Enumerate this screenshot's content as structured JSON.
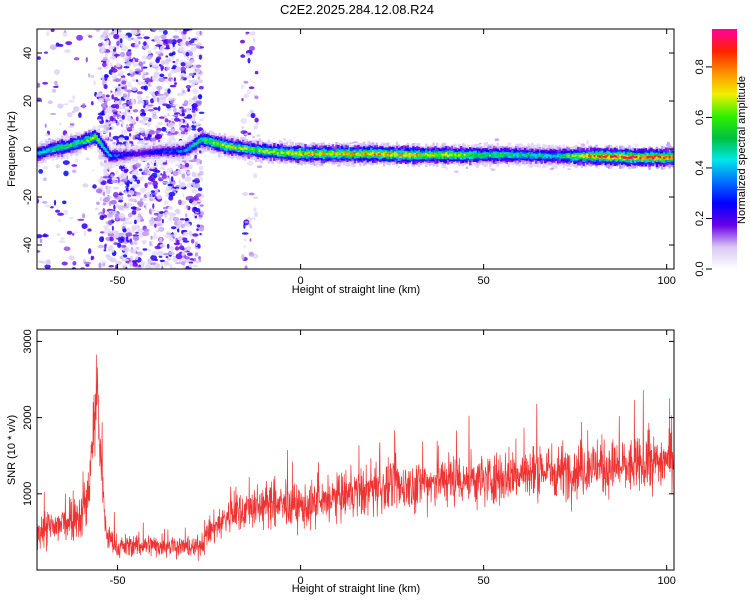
{
  "title": "C2E2.2025.284.12.08.R24",
  "chart_data": [
    {
      "type": "heatmap",
      "xlabel": "Height of straight line (km)",
      "ylabel": "Frequency (Hz)",
      "xlim": [
        -72,
        102
      ],
      "ylim": [
        -50,
        50
      ],
      "xticks": [
        -50,
        0,
        50,
        100
      ],
      "yticks": [
        -40,
        -20,
        0,
        20,
        40
      ],
      "colorbar": {
        "label": "Normalized spectral amplitude",
        "range": [
          0,
          0.95
        ],
        "ticks": [
          "0.0",
          "0.2",
          "0.4",
          "0.6",
          "0.8"
        ],
        "tick_values": [
          0,
          0.2,
          0.4,
          0.6,
          0.8
        ],
        "colors": [
          "#ffffff",
          "#d8c8f4",
          "#6a00e8",
          "#0000ff",
          "#0070ff",
          "#00e8e8",
          "#00c040",
          "#30f000",
          "#f0f000",
          "#ff9000",
          "#ff2000",
          "#ff00a0"
        ]
      },
      "ridge": [
        {
          "x": -72,
          "f": -2
        },
        {
          "x": -68,
          "f": 0
        },
        {
          "x": -64,
          "f": 1
        },
        {
          "x": -60,
          "f": 3
        },
        {
          "x": -56,
          "f": 5
        },
        {
          "x": -52,
          "f": -3
        },
        {
          "x": -45,
          "f": -2
        },
        {
          "x": -38,
          "f": -1
        },
        {
          "x": -32,
          "f": -1
        },
        {
          "x": -27,
          "f": 4
        },
        {
          "x": -20,
          "f": 1
        },
        {
          "x": -10,
          "f": -1
        },
        {
          "x": 0,
          "f": -2
        },
        {
          "x": 10,
          "f": -2
        },
        {
          "x": 20,
          "f": -2
        },
        {
          "x": 30,
          "f": -2.5
        },
        {
          "x": 40,
          "f": -2.5
        },
        {
          "x": 50,
          "f": -2.5
        },
        {
          "x": 60,
          "f": -2.5
        },
        {
          "x": 70,
          "f": -3
        },
        {
          "x": 80,
          "f": -3
        },
        {
          "x": 90,
          "f": -3.5
        },
        {
          "x": 102,
          "f": -3.5
        }
      ],
      "amplitude": [
        {
          "x": -72,
          "a": 0.4
        },
        {
          "x": -66,
          "a": 0.55
        },
        {
          "x": -60,
          "a": 0.55
        },
        {
          "x": -56,
          "a": 0.65
        },
        {
          "x": -52,
          "a": 0.35
        },
        {
          "x": -45,
          "a": 0.2
        },
        {
          "x": -35,
          "a": 0.3
        },
        {
          "x": -27,
          "a": 0.5
        },
        {
          "x": -22,
          "a": 0.7
        },
        {
          "x": -15,
          "a": 0.6
        },
        {
          "x": -5,
          "a": 0.65
        },
        {
          "x": 0,
          "a": 0.75
        },
        {
          "x": 10,
          "a": 0.7
        },
        {
          "x": 20,
          "a": 0.75
        },
        {
          "x": 30,
          "a": 0.72
        },
        {
          "x": 40,
          "a": 0.7
        },
        {
          "x": 50,
          "a": 0.55
        },
        {
          "x": 60,
          "a": 0.5
        },
        {
          "x": 70,
          "a": 0.45
        },
        {
          "x": 80,
          "a": 0.8
        },
        {
          "x": 90,
          "a": 0.85
        },
        {
          "x": 102,
          "a": 0.8
        }
      ],
      "noise_bands": [
        {
          "x0": -55,
          "x1": -27,
          "density": 0.9
        },
        {
          "x0": -16,
          "x1": -12,
          "density": 0.25
        },
        {
          "x0": -72,
          "x1": -55,
          "density": 0.12
        }
      ]
    },
    {
      "type": "line",
      "xlabel": "Height of straight line (km)",
      "ylabel": "SNR (10 * v/v)",
      "xlim": [
        -72,
        102
      ],
      "ylim": [
        0,
        3150
      ],
      "xticks": [
        -50,
        0,
        50,
        100
      ],
      "yticks": [
        1000,
        2000,
        3000
      ],
      "color": "#ee3333",
      "series": [
        {
          "x": [
            -72,
            -68,
            -65,
            -62,
            -60,
            -58,
            -56.5,
            -55.5,
            -54.5,
            -53,
            -50,
            -45,
            -40,
            -35,
            -30,
            -27,
            -25,
            -20,
            -15,
            -10,
            -5,
            0,
            5,
            10,
            15,
            20,
            25,
            30,
            35,
            40,
            45,
            50,
            55,
            60,
            65,
            70,
            75,
            80,
            85,
            90,
            95,
            100,
            102
          ],
          "mean": [
            500,
            550,
            600,
            750,
            700,
            1000,
            1900,
            2400,
            1300,
            450,
            300,
            330,
            320,
            330,
            280,
            330,
            500,
            700,
            800,
            850,
            850,
            830,
            850,
            950,
            1000,
            1050,
            1100,
            1100,
            1150,
            1200,
            1200,
            1180,
            1230,
            1250,
            1300,
            1300,
            1320,
            1350,
            1350,
            1350,
            1380,
            1450,
            1500
          ],
          "spread": [
            350,
            350,
            380,
            450,
            420,
            550,
            750,
            750,
            650,
            250,
            200,
            200,
            200,
            200,
            180,
            200,
            260,
            320,
            350,
            380,
            380,
            380,
            400,
            400,
            420,
            420,
            440,
            440,
            440,
            460,
            460,
            460,
            460,
            470,
            470,
            470,
            480,
            480,
            480,
            480,
            480,
            480,
            480
          ]
        }
      ]
    }
  ]
}
